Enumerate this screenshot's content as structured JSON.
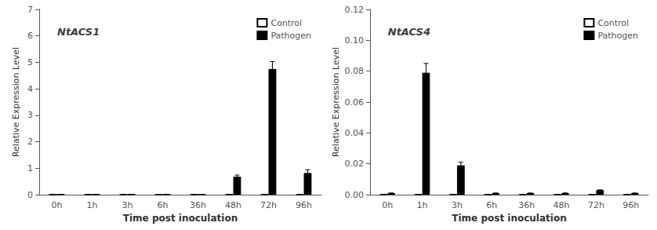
{
  "chart_data": [
    {
      "type": "bar",
      "title": "NtACS1",
      "xlabel": "Time post inoculation",
      "ylabel": "Relative Expression Level",
      "categories": [
        "0h",
        "1h",
        "3h",
        "6h",
        "36h",
        "48h",
        "72h",
        "96h"
      ],
      "series": [
        {
          "name": "Control",
          "color": "white",
          "values": [
            0.0,
            0.0,
            0.0,
            0.0,
            0.0,
            0.0,
            0.0,
            0.0
          ],
          "errors": [
            0.0,
            0.0,
            0.0,
            0.0,
            0.0,
            0.0,
            0.0,
            0.0
          ]
        },
        {
          "name": "Pathogen",
          "color": "black",
          "values": [
            0.01,
            0.01,
            0.01,
            0.01,
            0.01,
            0.68,
            4.75,
            0.82
          ],
          "errors": [
            0.0,
            0.0,
            0.0,
            0.0,
            0.0,
            0.06,
            0.28,
            0.12
          ]
        }
      ],
      "ylim": [
        0,
        7
      ],
      "yticks": [
        0,
        1,
        2,
        3,
        4,
        5,
        6,
        7
      ],
      "grid": false,
      "legend": "upper right"
    },
    {
      "type": "bar",
      "title": "NtACS4",
      "xlabel": "Time post inoculation",
      "ylabel": "Relative Expression Level",
      "categories": [
        "0h",
        "1h",
        "3h",
        "6h",
        "36h",
        "48h",
        "72h",
        "96h"
      ],
      "series": [
        {
          "name": "Control",
          "color": "white",
          "values": [
            0.0,
            0.0,
            0.0,
            0.0,
            0.0,
            0.0,
            0.0,
            0.0
          ],
          "errors": [
            0.0,
            0.0,
            0.0,
            0.0,
            0.0,
            0.0,
            0.0,
            0.0
          ]
        },
        {
          "name": "Pathogen",
          "color": "black",
          "values": [
            0.001,
            0.079,
            0.019,
            0.001,
            0.001,
            0.001,
            0.003,
            0.001
          ],
          "errors": [
            0.0,
            0.006,
            0.002,
            0.0,
            0.0,
            0.0,
            0.0,
            0.0
          ]
        }
      ],
      "ylim": [
        0,
        0.12
      ],
      "yticks": [
        {
          "value": 0,
          "label": "0.00"
        },
        0.02,
        0.04,
        0.06,
        0.08,
        {
          "value": 0.1,
          "label": "0.10"
        },
        0.12
      ],
      "grid": false,
      "legend": "upper right"
    }
  ]
}
